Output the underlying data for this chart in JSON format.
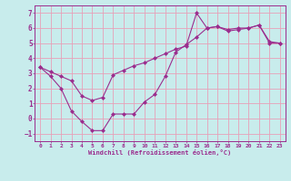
{
  "line1_x": [
    0,
    1,
    2,
    3,
    4,
    5,
    6,
    7,
    8,
    9,
    10,
    11,
    12,
    13,
    14,
    15,
    16,
    17,
    18,
    19,
    20,
    21,
    22,
    23
  ],
  "line1_y": [
    3.4,
    2.8,
    2.0,
    0.5,
    -0.2,
    -0.8,
    -0.8,
    0.3,
    0.3,
    0.3,
    1.1,
    1.6,
    2.8,
    4.4,
    4.9,
    5.4,
    6.0,
    6.1,
    5.9,
    6.0,
    6.0,
    6.2,
    5.0,
    5.0
  ],
  "line2_x": [
    0,
    1,
    2,
    3,
    4,
    5,
    6,
    7,
    8,
    9,
    10,
    11,
    12,
    13,
    14,
    15,
    16,
    17,
    18,
    19,
    20,
    21,
    22,
    23
  ],
  "line2_y": [
    3.4,
    3.1,
    2.8,
    2.5,
    1.5,
    1.2,
    1.4,
    2.9,
    3.2,
    3.5,
    3.7,
    4.0,
    4.3,
    4.6,
    4.8,
    7.0,
    6.0,
    6.1,
    5.8,
    5.9,
    6.0,
    6.2,
    5.1,
    5.0
  ],
  "color": "#9B2D8E",
  "bg_color": "#C8ECEC",
  "grid_color": "#E8A0B8",
  "xlabel": "Windchill (Refroidissement éolien,°C)",
  "xlim": [
    -0.5,
    23.5
  ],
  "ylim": [
    -1.5,
    7.5
  ],
  "yticks": [
    -1,
    0,
    1,
    2,
    3,
    4,
    5,
    6,
    7
  ],
  "xticks": [
    0,
    1,
    2,
    3,
    4,
    5,
    6,
    7,
    8,
    9,
    10,
    11,
    12,
    13,
    14,
    15,
    16,
    17,
    18,
    19,
    20,
    21,
    22,
    23
  ]
}
